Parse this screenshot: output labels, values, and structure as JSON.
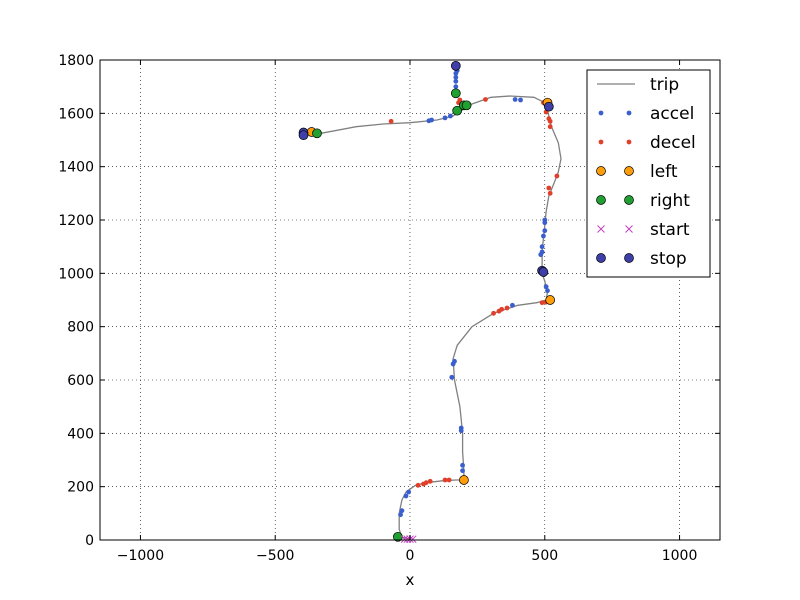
{
  "chart_data": {
    "type": "scatter",
    "title": "",
    "xlabel": "x",
    "ylabel": "",
    "xlim": [
      -1150,
      1150
    ],
    "ylim": [
      0,
      1800
    ],
    "xticks": [
      -1000,
      -500,
      0,
      500,
      1000
    ],
    "yticks": [
      0,
      200,
      400,
      600,
      800,
      1000,
      1200,
      1400,
      1600,
      1800
    ],
    "xtick_labels": [
      "−1000",
      "−500",
      "0",
      "500",
      "1000"
    ],
    "ytick_labels": [
      "0",
      "200",
      "400",
      "600",
      "800",
      "1000",
      "1200",
      "1400",
      "1600",
      "1800"
    ],
    "grid": true,
    "legend_position": "top-right",
    "series": [
      {
        "name": "trip",
        "kind": "line",
        "color": "#808080",
        "points": [
          [
            0,
            0
          ],
          [
            -15,
            8
          ],
          [
            -30,
            10
          ],
          [
            -40,
            40
          ],
          [
            -40,
            100
          ],
          [
            -30,
            150
          ],
          [
            -15,
            180
          ],
          [
            20,
            205
          ],
          [
            60,
            215
          ],
          [
            120,
            222
          ],
          [
            170,
            225
          ],
          [
            200,
            225
          ],
          [
            200,
            260
          ],
          [
            195,
            330
          ],
          [
            195,
            400
          ],
          [
            185,
            500
          ],
          [
            165,
            600
          ],
          [
            160,
            680
          ],
          [
            175,
            730
          ],
          [
            230,
            800
          ],
          [
            310,
            850
          ],
          [
            400,
            880
          ],
          [
            470,
            890
          ],
          [
            505,
            900
          ],
          [
            510,
            930
          ],
          [
            500,
            970
          ],
          [
            490,
            1000
          ],
          [
            490,
            1040
          ],
          [
            490,
            1080
          ],
          [
            495,
            1130
          ],
          [
            500,
            1180
          ],
          [
            505,
            1230
          ],
          [
            515,
            1290
          ],
          [
            535,
            1340
          ],
          [
            550,
            1380
          ],
          [
            560,
            1430
          ],
          [
            550,
            1490
          ],
          [
            525,
            1550
          ],
          [
            510,
            1610
          ],
          [
            500,
            1640
          ],
          [
            460,
            1660
          ],
          [
            370,
            1665
          ],
          [
            300,
            1660
          ],
          [
            230,
            1635
          ],
          [
            190,
            1610
          ],
          [
            160,
            1590
          ],
          [
            100,
            1575
          ],
          [
            0,
            1565
          ],
          [
            -100,
            1560
          ],
          [
            -200,
            1550
          ],
          [
            -330,
            1525
          ],
          [
            -370,
            1528
          ],
          [
            -400,
            1527
          ]
        ]
      },
      {
        "name": "accel",
        "kind": "dot",
        "color": "#3a5fcd",
        "points": [
          [
            -35,
            95
          ],
          [
            -30,
            110
          ],
          [
            -15,
            165
          ],
          [
            -5,
            180
          ],
          [
            195,
            260
          ],
          [
            195,
            280
          ],
          [
            190,
            410
          ],
          [
            190,
            420
          ],
          [
            155,
            610
          ],
          [
            160,
            660
          ],
          [
            165,
            670
          ],
          [
            380,
            880
          ],
          [
            495,
            1000
          ],
          [
            485,
            1070
          ],
          [
            490,
            1080
          ],
          [
            490,
            1100
          ],
          [
            495,
            1140
          ],
          [
            500,
            1160
          ],
          [
            500,
            1190
          ],
          [
            500,
            1200
          ],
          [
            510,
            935
          ],
          [
            505,
            950
          ],
          [
            70,
            1572
          ],
          [
            80,
            1575
          ],
          [
            130,
            1583
          ],
          [
            150,
            1590
          ],
          [
            390,
            1652
          ],
          [
            410,
            1650
          ],
          [
            170,
            1700
          ],
          [
            170,
            1720
          ],
          [
            170,
            1735
          ],
          [
            170,
            1750
          ],
          [
            175,
            1760
          ]
        ]
      },
      {
        "name": "decel",
        "kind": "dot",
        "color": "#e0402a",
        "points": [
          [
            30,
            205
          ],
          [
            50,
            210
          ],
          [
            60,
            215
          ],
          [
            75,
            220
          ],
          [
            130,
            225
          ],
          [
            145,
            225
          ],
          [
            310,
            850
          ],
          [
            330,
            858
          ],
          [
            340,
            865
          ],
          [
            360,
            870
          ],
          [
            490,
            890
          ],
          [
            505,
            892
          ],
          [
            520,
            1300
          ],
          [
            515,
            1320
          ],
          [
            545,
            1365
          ],
          [
            520,
            1550
          ],
          [
            520,
            1570
          ],
          [
            515,
            1580
          ],
          [
            505,
            1605
          ],
          [
            495,
            1640
          ],
          [
            280,
            1652
          ],
          [
            -70,
            1570
          ],
          [
            180,
            1640
          ],
          [
            185,
            1650
          ]
        ]
      },
      {
        "name": "left",
        "kind": "marker",
        "color": "#ff9d0a",
        "points": [
          [
            200,
            225
          ],
          [
            520,
            900
          ],
          [
            510,
            1640
          ],
          [
            -365,
            1530
          ]
        ]
      },
      {
        "name": "right",
        "kind": "marker",
        "color": "#20a030",
        "points": [
          [
            -45,
            12
          ],
          [
            175,
            1610
          ],
          [
            200,
            1630
          ],
          [
            210,
            1630
          ],
          [
            170,
            1675
          ],
          [
            -345,
            1525
          ]
        ]
      },
      {
        "name": "start",
        "kind": "cross",
        "color": "#c040c0",
        "points": [
          [
            -20,
            3
          ],
          [
            -10,
            3
          ],
          [
            0,
            3
          ],
          [
            10,
            3
          ]
        ]
      },
      {
        "name": "stop",
        "kind": "marker",
        "color": "#3f3faa",
        "points": [
          [
            490,
            1010
          ],
          [
            495,
            1005
          ],
          [
            170,
            1778
          ],
          [
            515,
            1625
          ],
          [
            -395,
            1528
          ],
          [
            -395,
            1518
          ]
        ]
      }
    ]
  }
}
